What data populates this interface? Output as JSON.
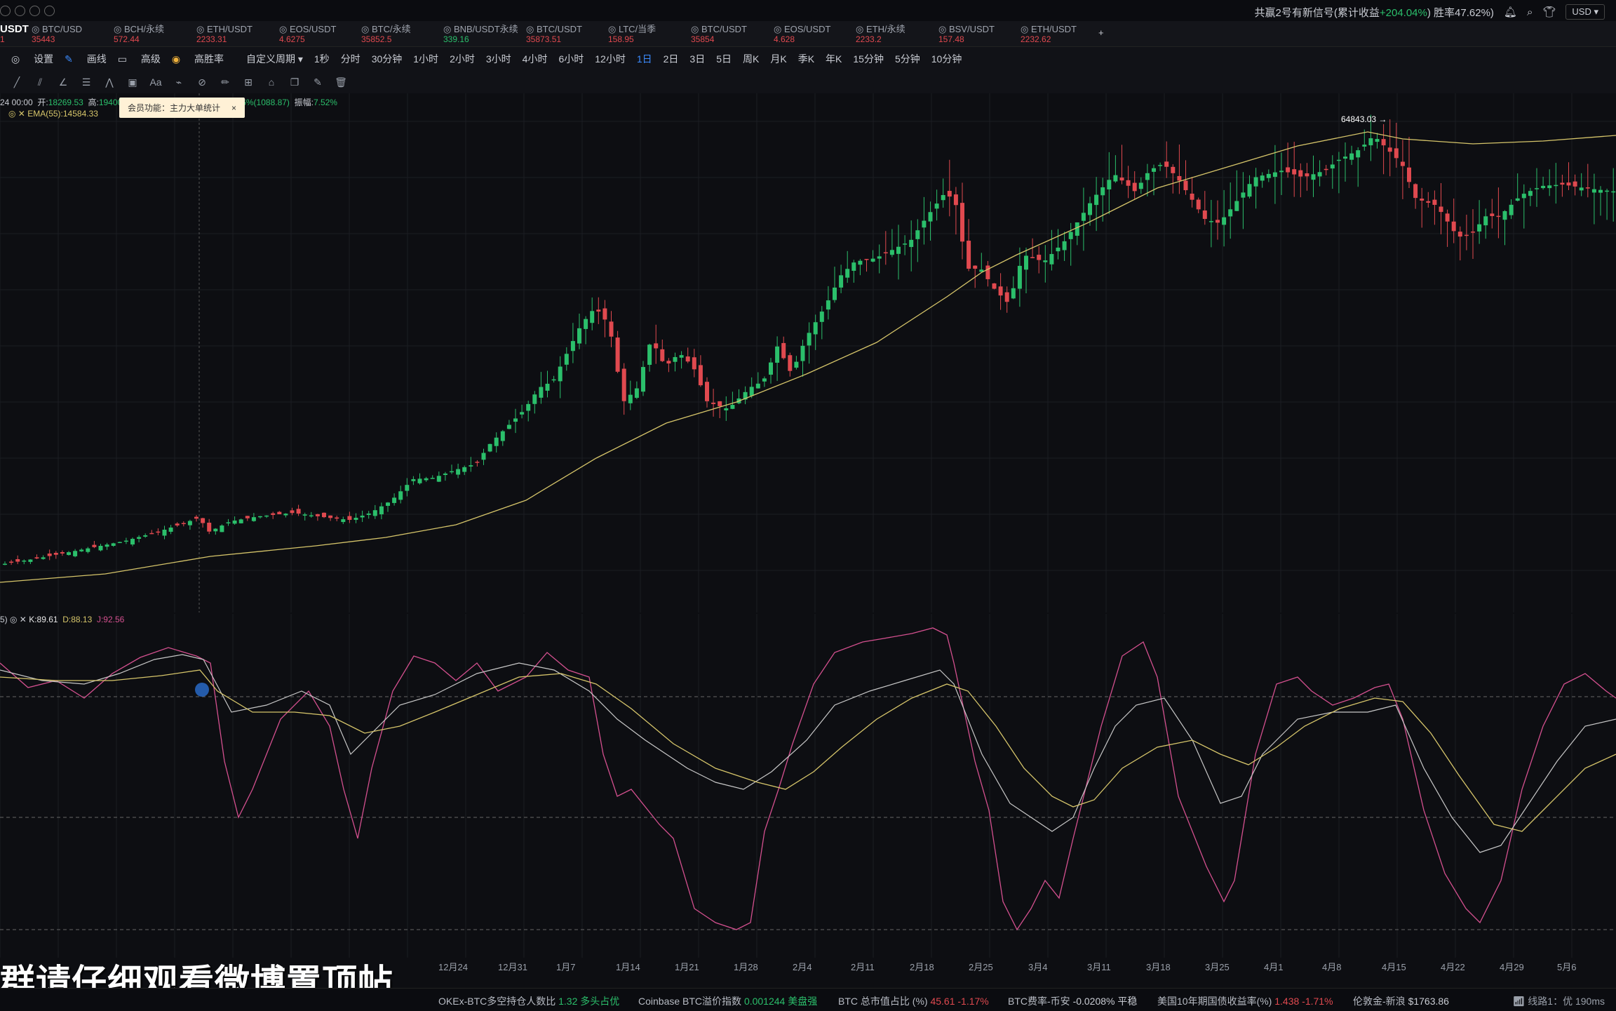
{
  "topbar": {
    "signal": "共赢2号有新信号(累计收益",
    "signal_value": "+204.04%",
    "signal_close": ")",
    "winrate": "胜率47.62%)",
    "currency": "USD"
  },
  "tabs": [
    {
      "name": "USDT",
      "price": "1",
      "cls": "neg",
      "active": true
    },
    {
      "name": "BTC/USD",
      "price": "35443",
      "cls": "neg"
    },
    {
      "name": "BCH/永续",
      "price": "572.44",
      "cls": "neg"
    },
    {
      "name": "ETH/USDT",
      "price": "2233.31",
      "cls": "neg"
    },
    {
      "name": "EOS/USDT",
      "price": "4.6275",
      "cls": "neg"
    },
    {
      "name": "BTC/永续",
      "price": "35852.5",
      "cls": "neg"
    },
    {
      "name": "BNB/USDT永续",
      "price": "339.16",
      "cls": "pos"
    },
    {
      "name": "BTC/USDT",
      "price": "35873.51",
      "cls": "neg"
    },
    {
      "name": "LTC/当季",
      "price": "158.95",
      "cls": "neg"
    },
    {
      "name": "BTC/USDT",
      "price": "35854",
      "cls": "neg"
    },
    {
      "name": "EOS/USDT",
      "price": "4.628",
      "cls": "neg"
    },
    {
      "name": "ETH/永续",
      "price": "2233.2",
      "cls": "neg"
    },
    {
      "name": "BSV/USDT",
      "price": "157.48",
      "cls": "neg"
    },
    {
      "name": "ETH/USDT",
      "price": "2232.62",
      "cls": "neg"
    }
  ],
  "toolbar": {
    "settings": "设置",
    "drawing": "画线",
    "advanced": "高级",
    "win_rate": "高胜率",
    "custom_period": "自定义周期",
    "periods": [
      "1秒",
      "分时",
      "30分钟",
      "1小时",
      "2小时",
      "3小时",
      "4小时",
      "6小时",
      "12小时",
      "1日",
      "2日",
      "3日",
      "5日",
      "周K",
      "月K",
      "季K",
      "年K",
      "15分钟",
      "5分钟",
      "10分钟"
    ],
    "active_period": "1日"
  },
  "info_line": {
    "date": "24 00:00",
    "open_label": "开:",
    "open": "18269.53",
    "high_label": "高:",
    "high": "19400",
    "change": "5.96%(1088.87)",
    "amp_label": "振幅:",
    "amp": "7.52%"
  },
  "ema_label": "EMA(55):14584.33",
  "tooltip": {
    "text": "会员功能：主力大单统计",
    "close": "×"
  },
  "peak_label": "64843.03 →",
  "kdj": {
    "prefix": "5)",
    "k": "K:89.61",
    "d": "D:88.13",
    "j": "J:92.56"
  },
  "xaxis": [
    "12月24",
    "12月31",
    "1月7",
    "1月14",
    "1月21",
    "1月28",
    "2月4",
    "2月11",
    "2月18",
    "2月25",
    "3月4",
    "3月11",
    "3月18",
    "3月25",
    "4月1",
    "4月8",
    "4月15",
    "4月22",
    "4月29",
    "5月6"
  ],
  "subtitle": "群请仔细观看微博置顶帖",
  "status": [
    {
      "label": "OKEx-BTC多空持仓人数比",
      "value": "1.32",
      "tag": "多头占优",
      "cls": "pos"
    },
    {
      "label": "Coinbase BTC溢价指数",
      "value": "0.001244",
      "tag": "美盘强",
      "cls": "pos"
    },
    {
      "label": "BTC 总市值占比 (%)",
      "value": "45.61",
      "tag": "-1.17%",
      "cls": "neg"
    },
    {
      "label": "BTC费率-币安",
      "value": "-0.0208%",
      "tag": "平稳",
      "cls": "plain"
    },
    {
      "label": "美国10年期国债收益率(%)",
      "value": "1.438",
      "tag": "-1.71%",
      "cls": "neg"
    },
    {
      "label": "伦敦金-新浪",
      "value": "$1763.86",
      "tag": "",
      "cls": "plain"
    }
  ],
  "connection": "线路1：优 190ms",
  "colors": {
    "up": "#2bbf6b",
    "down": "#e0494f",
    "ema": "#d6c56a",
    "k": "#c8c8c8",
    "d": "#d6c56a",
    "j": "#d4508f",
    "accent": "#3c8cff"
  }
}
